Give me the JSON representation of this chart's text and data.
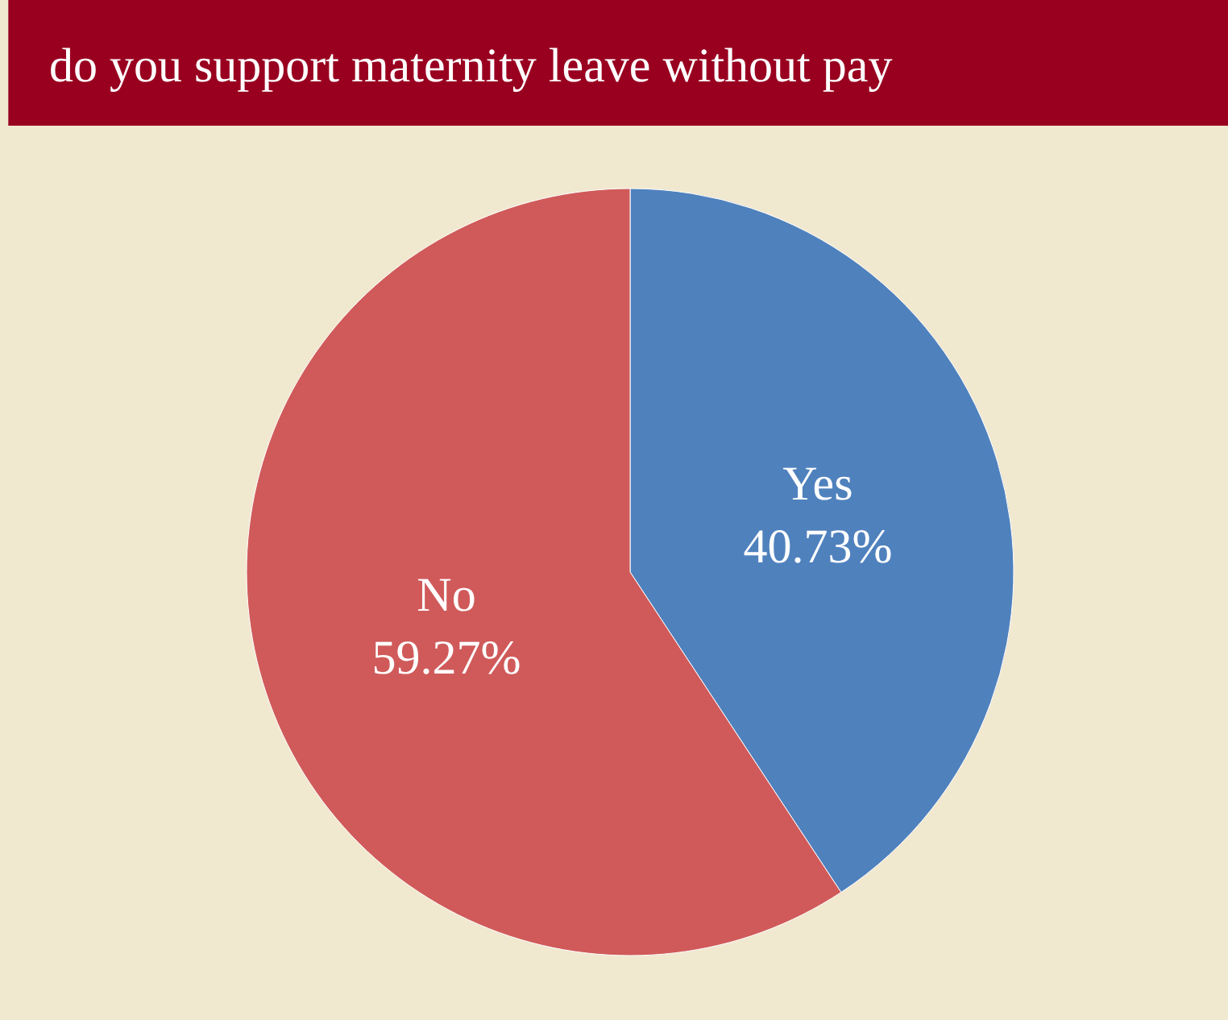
{
  "chart_data": {
    "type": "pie",
    "title": "do you support maternity leave without pay",
    "categories": [
      "Yes",
      "No"
    ],
    "values": [
      40.73,
      59.27
    ],
    "colors": [
      "#4f81bd",
      "#d05a5a"
    ],
    "value_labels": [
      "40.73%",
      "59.27%"
    ],
    "legend": false
  }
}
